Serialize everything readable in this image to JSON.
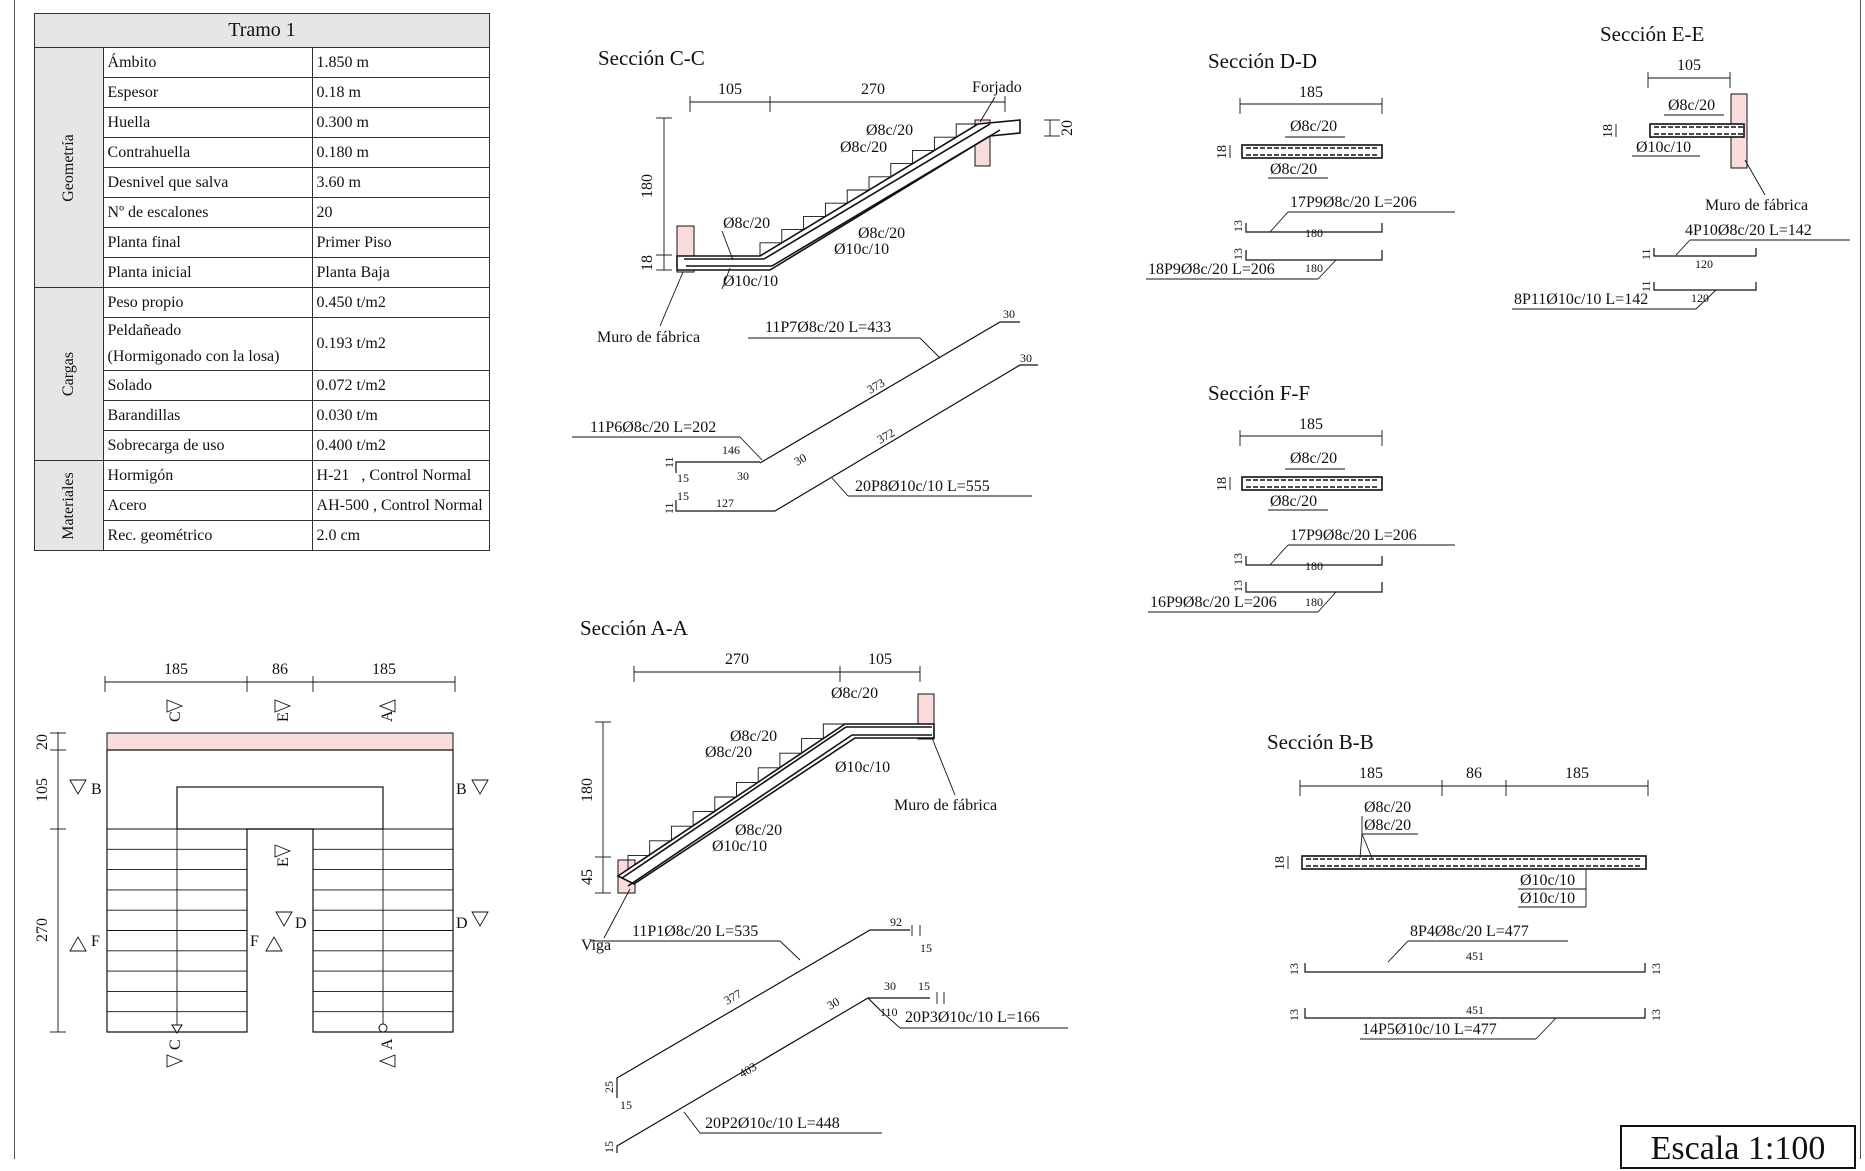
{
  "table": {
    "title": "Tramo 1",
    "groups": [
      {
        "name": "Geometría",
        "rows": [
          [
            "Ámbito",
            "1.850 m"
          ],
          [
            "Espesor",
            "0.18 m"
          ],
          [
            "Huella",
            "0.300 m"
          ],
          [
            "Contrahuella",
            "0.180 m"
          ],
          [
            "Desnivel que salva",
            "3.60 m"
          ],
          [
            "Nº de escalones",
            "20"
          ],
          [
            "Planta final",
            "Primer Piso"
          ],
          [
            "Planta inicial",
            "Planta Baja"
          ]
        ]
      },
      {
        "name": "Cargas",
        "rows": [
          [
            "Peso propio",
            "0.450 t/m2"
          ],
          [
            "Peldañeado\n(Hormigonado con la losa)",
            "0.193 t/m2"
          ],
          [
            "Solado",
            "0.072 t/m2"
          ],
          [
            "Barandillas",
            "0.030 t/m"
          ],
          [
            "Sobrecarga de uso",
            "0.400 t/m2"
          ]
        ]
      },
      {
        "name": "Materiales",
        "rows": [
          [
            "Hormigón",
            "H-21   , Control Normal"
          ],
          [
            "Acero",
            "AH-500 , Control Normal"
          ],
          [
            "Rec. geométrico",
            "2.0 cm"
          ]
        ]
      }
    ]
  },
  "plan": {
    "dims_top": [
      "185",
      "86",
      "185"
    ],
    "dims_left": [
      "20",
      "105",
      "270"
    ],
    "cut_labels": {
      "a": "A",
      "b": "B",
      "c": "C",
      "d": "D",
      "e": "E",
      "f": "F"
    }
  },
  "section_cc": {
    "title": "Sección C-C",
    "dims": {
      "h1": "105",
      "h2": "270",
      "v1": "180",
      "v2": "18",
      "v3": "20"
    },
    "labels": {
      "forjado": "Forjado",
      "muro": "Muro de fábrica",
      "r1": "Ø8c/20",
      "r2": "Ø8c/20",
      "r3": "Ø8c/20",
      "r4": "Ø8c/20",
      "r5": "Ø10c/10",
      "r6": "Ø10c/10"
    },
    "bars": {
      "b1": "11P7Ø8c/20 L=433",
      "b1_a": "30",
      "b1_b": "373",
      "b2": "11P6Ø8c/20 L=202",
      "b2_a": "146",
      "b2_b": "30",
      "b2_c": "30",
      "b2_d": "15",
      "b2_e": "11",
      "b3": "20P8Ø10c/10 L=555",
      "b3_a": "30",
      "b3_b": "372",
      "b3_c": "127",
      "b3_d": "15",
      "b3_e": "11"
    }
  },
  "section_aa": {
    "title": "Sección A-A",
    "dims": {
      "h1": "270",
      "h2": "105",
      "v1": "180",
      "v2": "45"
    },
    "labels": {
      "viga": "Viga",
      "muro": "Muro de fábrica",
      "r1": "Ø8c/20",
      "r2": "Ø8c/20",
      "r3": "Ø8c/20",
      "r4": "Ø8c/20",
      "r5": "Ø10c/10",
      "r6": "Ø10c/10"
    },
    "bars": {
      "b1": "11P1Ø8c/20 L=535",
      "b1_a": "92",
      "b1_b": "377",
      "b1_c": "25",
      "b1_d": "15",
      "b1_e": "15",
      "b2": "20P3Ø10c/10 L=166",
      "b2_a": "30",
      "b2_b": "15",
      "b2_c": "110",
      "b2_d": "30",
      "b3": "20P2Ø10c/10 L=448",
      "b3_a": "403",
      "b3_b": "15"
    }
  },
  "section_dd": {
    "title": "Sección D-D",
    "dims": {
      "w": "185",
      "t": "18"
    },
    "labels": {
      "top": "Ø8c/20",
      "bot": "Ø8c/20"
    },
    "bars": {
      "b1": "17P9Ø8c/20 L=206",
      "b1_l": "180",
      "b1_h": "13",
      "b2": "18P9Ø8c/20 L=206",
      "b2_l": "180",
      "b2_h": "13"
    }
  },
  "section_ff": {
    "title": "Sección F-F",
    "dims": {
      "w": "185",
      "t": "18"
    },
    "labels": {
      "top": "Ø8c/20",
      "bot": "Ø8c/20"
    },
    "bars": {
      "b1": "17P9Ø8c/20 L=206",
      "b1_l": "180",
      "b1_h": "13",
      "b2": "16P9Ø8c/20 L=206",
      "b2_l": "180",
      "b2_h": "13"
    }
  },
  "section_ee": {
    "title": "Sección E-E",
    "dims": {
      "w": "105",
      "t": "18"
    },
    "labels": {
      "top": "Ø8c/20",
      "bot": "Ø10c/10",
      "muro": "Muro de fábrica"
    },
    "bars": {
      "b1": "4P10Ø8c/20 L=142",
      "b1_l": "120",
      "b1_h": "11",
      "b2": "8P11Ø10c/10 L=142",
      "b2_l": "120",
      "b2_h": "11"
    }
  },
  "section_bb": {
    "title": "Sección B-B",
    "dims": {
      "w1": "185",
      "w2": "86",
      "w3": "185",
      "t": "18"
    },
    "labels": {
      "r1": "Ø8c/20",
      "r2": "Ø8c/20",
      "r3": "Ø10c/10",
      "r4": "Ø10c/10"
    },
    "bars": {
      "b1": "8P4Ø8c/20 L=477",
      "b1_l": "451",
      "b1_h": "13",
      "b2": "14P5Ø10c/10 L=477",
      "b2_l": "451",
      "b2_h": "13"
    }
  },
  "escala": "Escala 1:100"
}
